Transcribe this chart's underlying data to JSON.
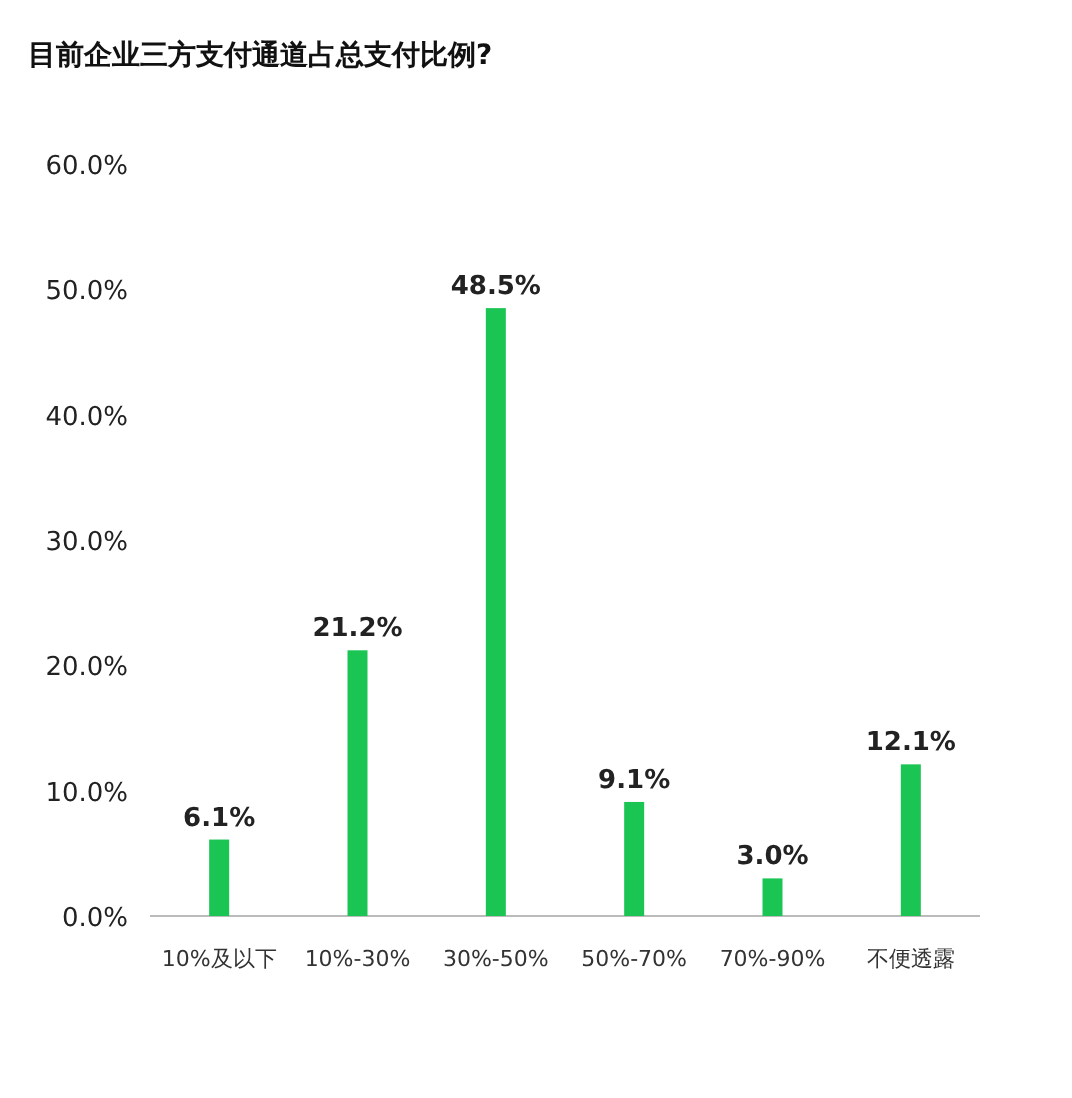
{
  "chart_data": {
    "type": "bar",
    "title": "目前企业三方支付通道占总支付比例?",
    "categories": [
      "10%及以下",
      "10%-30%",
      "30%-50%",
      "50%-70%",
      "70%-90%",
      "不便透露"
    ],
    "values": [
      6.1,
      21.2,
      48.5,
      9.1,
      3.0,
      12.1
    ],
    "value_labels": [
      "6.1%",
      "21.2%",
      "48.5%",
      "9.1%",
      "3.0%",
      "12.1%"
    ],
    "color": "#1bc553",
    "ylim": [
      0,
      60
    ],
    "yticks": [
      {
        "value": 0,
        "label": "0.0%"
      },
      {
        "value": 10,
        "label": "10.0%"
      },
      {
        "value": 20,
        "label": "20.0%"
      },
      {
        "value": 30,
        "label": "30.0%"
      },
      {
        "value": 40,
        "label": "40.0%"
      },
      {
        "value": 50,
        "label": "50.0%"
      },
      {
        "value": 60,
        "label": "60.0%"
      }
    ],
    "grid": false
  }
}
